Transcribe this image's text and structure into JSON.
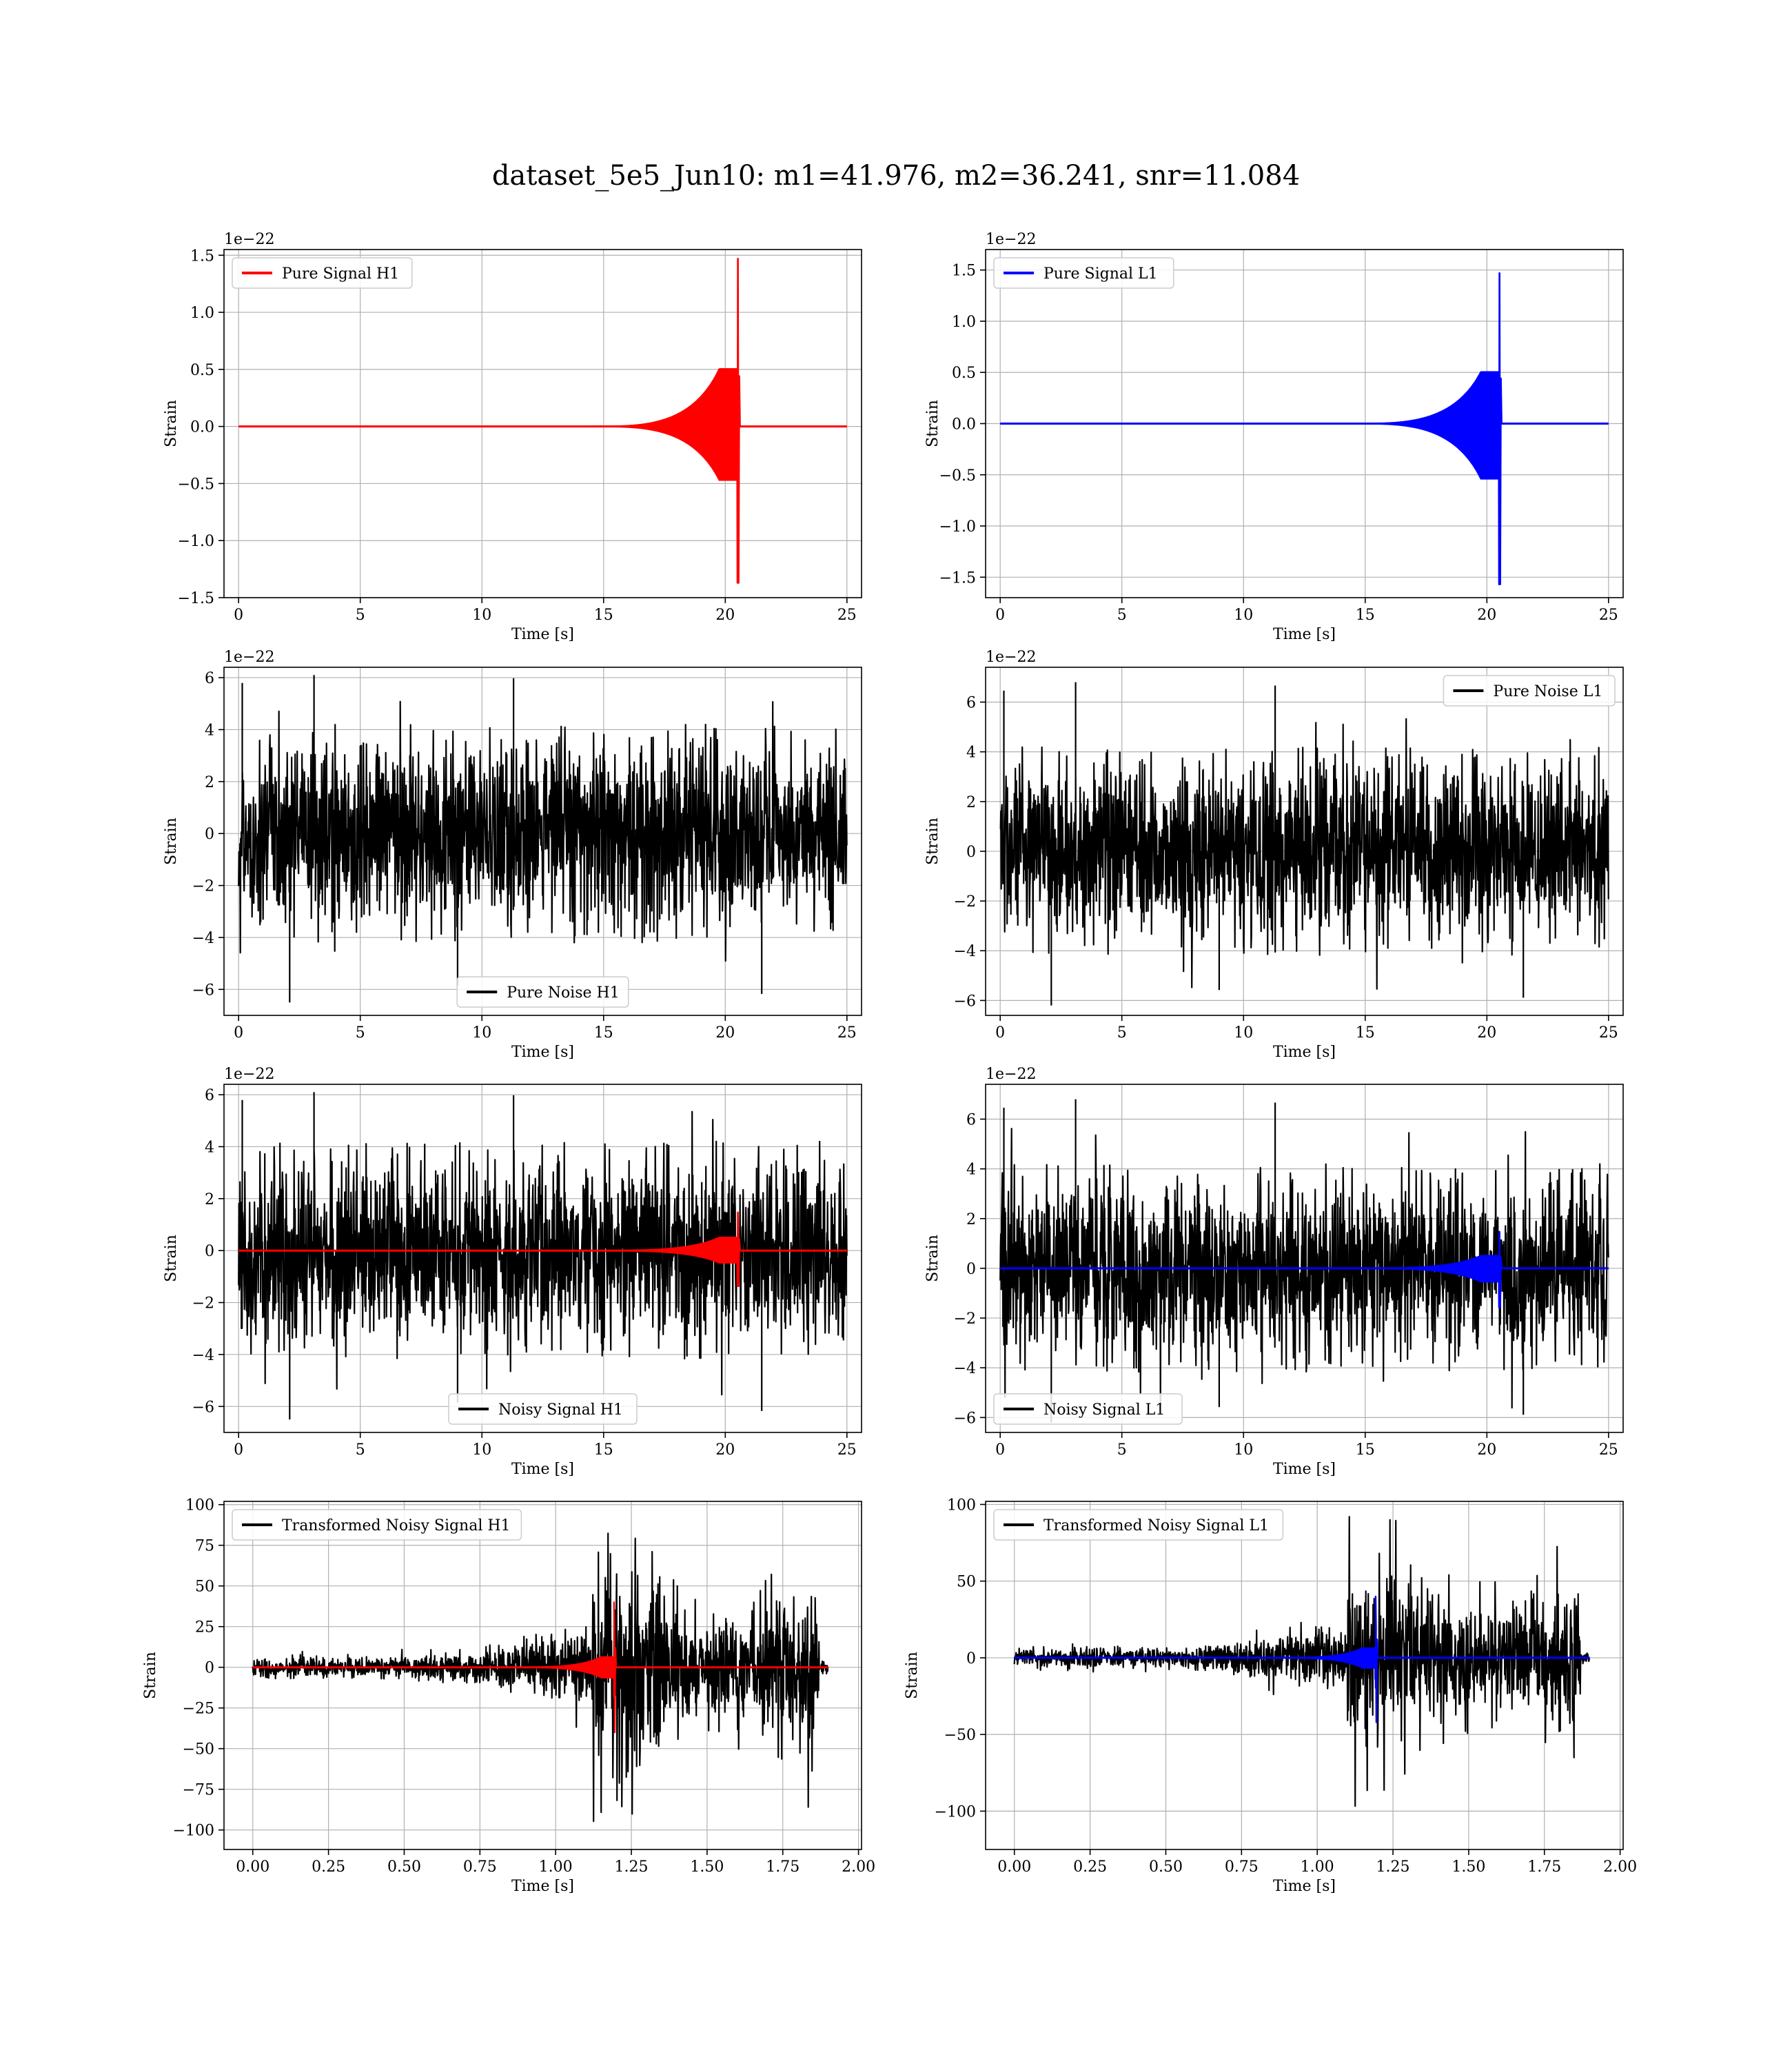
{
  "figure": {
    "title": "dataset_5e5_Jun10: m1=41.976, m2=36.241, snr=11.084"
  },
  "colors": {
    "h1": "#ff0000",
    "l1": "#0000ff",
    "noise": "#000000"
  },
  "chart_data": [
    {
      "id": "pure-signal-h1",
      "type": "line",
      "row": 0,
      "col": 0,
      "title": "",
      "xlabel": "Time [s]",
      "ylabel": "Strain",
      "scale_label": "1e−22",
      "xlim": [
        -0.6,
        25.6
      ],
      "ylim": [
        -1.5,
        1.55
      ],
      "xticks": [
        0,
        5,
        10,
        15,
        20,
        25
      ],
      "xtick_labels": [
        "0",
        "5",
        "10",
        "15",
        "20",
        "25"
      ],
      "yticks": [
        -1.5,
        -1.0,
        -0.5,
        0.0,
        0.5,
        1.0,
        1.5
      ],
      "ytick_labels": [
        "−1.5",
        "−1.0",
        "−0.5",
        "0.0",
        "0.5",
        "1.0",
        "1.5"
      ],
      "legend": {
        "label": "Pure Signal H1",
        "placement": "upper-left",
        "color": "#ff0000"
      },
      "series": [
        {
          "name": "Pure Signal H1",
          "color": "#ff0000",
          "kind": "chirp",
          "x_range": [
            0,
            25
          ],
          "baseline": 0,
          "merger_time": 20.55,
          "onset_time": 14.5,
          "inspiral_amplitude": 0.48,
          "peak_max": 1.47,
          "peak_min": -1.37
        }
      ]
    },
    {
      "id": "pure-signal-l1",
      "type": "line",
      "row": 0,
      "col": 1,
      "title": "",
      "xlabel": "Time [s]",
      "ylabel": "Strain",
      "scale_label": "1e−22",
      "xlim": [
        -0.6,
        25.6
      ],
      "ylim": [
        -1.7,
        1.7
      ],
      "xticks": [
        0,
        5,
        10,
        15,
        20,
        25
      ],
      "xtick_labels": [
        "0",
        "5",
        "10",
        "15",
        "20",
        "25"
      ],
      "yticks": [
        -1.5,
        -1.0,
        -0.5,
        0.0,
        0.5,
        1.0,
        1.5
      ],
      "ytick_labels": [
        "−1.5",
        "−1.0",
        "−0.5",
        "0.0",
        "0.5",
        "1.0",
        "1.5"
      ],
      "legend": {
        "label": "Pure Signal L1",
        "placement": "upper-left",
        "color": "#0000ff"
      },
      "series": [
        {
          "name": "Pure Signal L1",
          "color": "#0000ff",
          "kind": "chirp",
          "x_range": [
            0,
            25
          ],
          "baseline": 0,
          "merger_time": 20.55,
          "onset_time": 14.5,
          "inspiral_amplitude": 0.48,
          "peak_max": 1.47,
          "peak_min": -1.57
        }
      ]
    },
    {
      "id": "pure-noise-h1",
      "type": "line",
      "row": 1,
      "col": 0,
      "title": "",
      "xlabel": "Time [s]",
      "ylabel": "Strain",
      "scale_label": "1e−22",
      "xlim": [
        -0.6,
        25.6
      ],
      "ylim": [
        -7.0,
        6.4
      ],
      "xticks": [
        0,
        5,
        10,
        15,
        20,
        25
      ],
      "xtick_labels": [
        "0",
        "5",
        "10",
        "15",
        "20",
        "25"
      ],
      "yticks": [
        -6,
        -4,
        -2,
        0,
        2,
        4,
        6
      ],
      "ytick_labels": [
        "−6",
        "−4",
        "−2",
        "0",
        "2",
        "4",
        "6"
      ],
      "legend": {
        "label": "Pure Noise H1",
        "placement": "lower-center",
        "color": "#000000"
      },
      "series": [
        {
          "name": "Pure Noise H1",
          "color": "#000000",
          "kind": "noise",
          "x_range": [
            0,
            25
          ],
          "band": 4.2,
          "max": 6.1,
          "min": -6.5
        }
      ]
    },
    {
      "id": "pure-noise-l1",
      "type": "line",
      "row": 1,
      "col": 1,
      "title": "",
      "xlabel": "Time [s]",
      "ylabel": "Strain",
      "scale_label": "1e−22",
      "xlim": [
        -0.6,
        25.6
      ],
      "ylim": [
        -6.6,
        7.4
      ],
      "xticks": [
        0,
        5,
        10,
        15,
        20,
        25
      ],
      "xtick_labels": [
        "0",
        "5",
        "10",
        "15",
        "20",
        "25"
      ],
      "yticks": [
        -6,
        -4,
        -2,
        0,
        2,
        4,
        6
      ],
      "ytick_labels": [
        "−6",
        "−4",
        "−2",
        "0",
        "2",
        "4",
        "6"
      ],
      "legend": {
        "label": "Pure Noise L1",
        "placement": "upper-right",
        "color": "#000000"
      },
      "series": [
        {
          "name": "Pure Noise L1",
          "color": "#000000",
          "kind": "noise",
          "x_range": [
            0,
            25
          ],
          "band": 4.2,
          "max": 6.8,
          "min": -6.2
        }
      ]
    },
    {
      "id": "noisy-signal-h1",
      "type": "line",
      "row": 2,
      "col": 0,
      "title": "",
      "xlabel": "Time [s]",
      "ylabel": "Strain",
      "scale_label": "1e−22",
      "xlim": [
        -0.6,
        25.6
      ],
      "ylim": [
        -7.0,
        6.4
      ],
      "xticks": [
        0,
        5,
        10,
        15,
        20,
        25
      ],
      "xtick_labels": [
        "0",
        "5",
        "10",
        "15",
        "20",
        "25"
      ],
      "yticks": [
        -6,
        -4,
        -2,
        0,
        2,
        4,
        6
      ],
      "ytick_labels": [
        "−6",
        "−4",
        "−2",
        "0",
        "2",
        "4",
        "6"
      ],
      "legend": {
        "label": "Noisy Signal H1",
        "placement": "lower-center",
        "color": "#000000"
      },
      "series": [
        {
          "name": "Noisy Signal H1",
          "color": "#000000",
          "kind": "noise",
          "x_range": [
            0,
            25
          ],
          "band": 4.2,
          "max": 6.1,
          "min": -6.5
        },
        {
          "name": "",
          "color": "#ff0000",
          "kind": "chirp",
          "x_range": [
            0,
            25
          ],
          "baseline": 0,
          "merger_time": 20.55,
          "onset_time": 14.5,
          "inspiral_amplitude": 0.48,
          "peak_max": 1.47,
          "peak_min": -1.37
        }
      ]
    },
    {
      "id": "noisy-signal-l1",
      "type": "line",
      "row": 2,
      "col": 1,
      "title": "",
      "xlabel": "Time [s]",
      "ylabel": "Strain",
      "scale_label": "1e−22",
      "xlim": [
        -0.6,
        25.6
      ],
      "ylim": [
        -6.6,
        7.4
      ],
      "xticks": [
        0,
        5,
        10,
        15,
        20,
        25
      ],
      "xtick_labels": [
        "0",
        "5",
        "10",
        "15",
        "20",
        "25"
      ],
      "yticks": [
        -6,
        -4,
        -2,
        0,
        2,
        4,
        6
      ],
      "ytick_labels": [
        "−6",
        "−4",
        "−2",
        "0",
        "2",
        "4",
        "6"
      ],
      "legend": {
        "label": "Noisy Signal L1",
        "placement": "lower-left",
        "color": "#000000"
      },
      "series": [
        {
          "name": "Noisy Signal L1",
          "color": "#000000",
          "kind": "noise",
          "x_range": [
            0,
            25
          ],
          "band": 4.2,
          "max": 6.8,
          "min": -6.2
        },
        {
          "name": "",
          "color": "#0000ff",
          "kind": "chirp",
          "x_range": [
            0,
            25
          ],
          "baseline": 0,
          "merger_time": 20.55,
          "onset_time": 14.5,
          "inspiral_amplitude": 0.48,
          "peak_max": 1.47,
          "peak_min": -1.57
        }
      ]
    },
    {
      "id": "transformed-noisy-signal-h1",
      "type": "line",
      "row": 3,
      "col": 0,
      "title": "",
      "xlabel": "Time [s]",
      "ylabel": "Strain",
      "scale_label": "",
      "xlim": [
        -0.095,
        2.01
      ],
      "ylim": [
        -112,
        102
      ],
      "xticks": [
        0,
        0.25,
        0.5,
        0.75,
        1.0,
        1.25,
        1.5,
        1.75,
        2.0
      ],
      "xtick_labels": [
        "0.00",
        "0.25",
        "0.50",
        "0.75",
        "1.00",
        "1.25",
        "1.50",
        "1.75",
        "2.00"
      ],
      "yticks": [
        -100,
        -75,
        -50,
        -25,
        0,
        25,
        50,
        75,
        100
      ],
      "ytick_labels": [
        "−100",
        "−75",
        "−50",
        "−25",
        "0",
        "25",
        "50",
        "75",
        "100"
      ],
      "legend": {
        "label": "Transformed Noisy Signal H1",
        "placement": "upper-left",
        "color": "#000000"
      },
      "series": [
        {
          "name": "Transformed Noisy Signal H1",
          "color": "#000000",
          "kind": "whitened",
          "x_range": [
            0,
            1.9
          ],
          "early_band": 6,
          "growth_start": 0.55,
          "burst_time": 1.12,
          "late_band": 55,
          "drop_time": 1.87,
          "tail_band": 4,
          "max": 93,
          "min": -106
        },
        {
          "name": "",
          "color": "#ff0000",
          "kind": "chirp",
          "x_range": [
            0,
            1.9
          ],
          "baseline": 0,
          "merger_time": 1.195,
          "onset_time": 0.85,
          "inspiral_amplitude": 6,
          "peak_max": 40,
          "peak_min": -40
        }
      ]
    },
    {
      "id": "transformed-noisy-signal-l1",
      "type": "line",
      "row": 3,
      "col": 1,
      "title": "",
      "xlabel": "Time [s]",
      "ylabel": "Strain",
      "scale_label": "",
      "xlim": [
        -0.095,
        2.01
      ],
      "ylim": [
        -125,
        102
      ],
      "xticks": [
        0,
        0.25,
        0.5,
        0.75,
        1.0,
        1.25,
        1.5,
        1.75,
        2.0
      ],
      "xtick_labels": [
        "0.00",
        "0.25",
        "0.50",
        "0.75",
        "1.00",
        "1.25",
        "1.50",
        "1.75",
        "2.00"
      ],
      "yticks": [
        -100,
        -50,
        0,
        50,
        100
      ],
      "ytick_labels": [
        "−100",
        "−50",
        "0",
        "50",
        "100"
      ],
      "legend": {
        "label": "Transformed Noisy Signal L1",
        "placement": "upper-left",
        "color": "#000000"
      },
      "series": [
        {
          "name": "Transformed Noisy Signal L1",
          "color": "#000000",
          "kind": "whitened",
          "x_range": [
            0,
            1.9
          ],
          "early_band": 6,
          "growth_start": 0.55,
          "burst_time": 1.1,
          "late_band": 55,
          "drop_time": 1.87,
          "tail_band": 4,
          "max": 92,
          "min": -114
        },
        {
          "name": "",
          "color": "#0000ff",
          "kind": "chirp",
          "x_range": [
            0,
            1.9
          ],
          "baseline": 0,
          "merger_time": 1.195,
          "onset_time": 0.85,
          "inspiral_amplitude": 6,
          "peak_max": 40,
          "peak_min": -42
        }
      ]
    }
  ]
}
